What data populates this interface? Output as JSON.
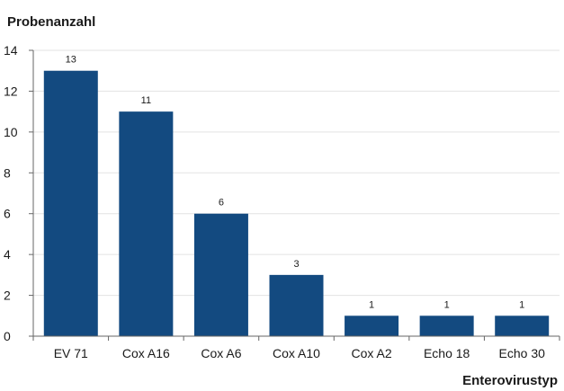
{
  "chart_data": {
    "type": "bar",
    "title": "",
    "ylabel": "Probenanzahl",
    "xlabel": "Enterovirustyp",
    "categories": [
      "EV 71",
      "Cox A16",
      "Cox A6",
      "Cox A10",
      "Cox A2",
      "Echo 18",
      "Echo 30"
    ],
    "values": [
      13,
      11,
      6,
      3,
      1,
      1,
      1
    ],
    "ylim": [
      0,
      14
    ],
    "yticks": [
      0,
      2,
      4,
      6,
      8,
      10,
      12,
      14
    ],
    "grid": true,
    "legend": "none",
    "colors": {
      "bar": "#134a80",
      "grid": "#e3e3e3",
      "axis": "#666666"
    }
  }
}
